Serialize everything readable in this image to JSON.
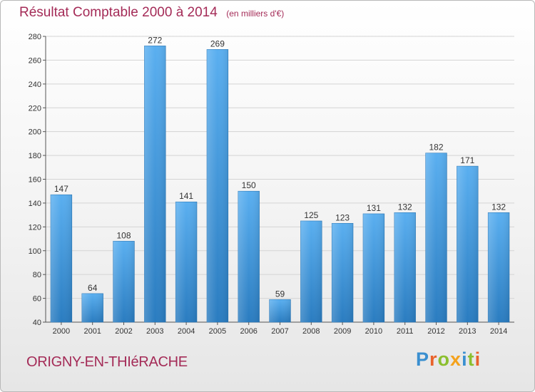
{
  "header": {
    "title": "Résultat Comptable 2000 à 2014",
    "subtitle": "(en milliers d'€)"
  },
  "footer": {
    "town": "ORIGNY-EN-THIéRACHE",
    "logo_letters": [
      {
        "char": "P",
        "color": "#3a8fd0"
      },
      {
        "char": "r",
        "color": "#e9622b"
      },
      {
        "char": "o",
        "color": "#8bbf2f"
      },
      {
        "char": "x",
        "color": "#f4a21c"
      },
      {
        "char": "i",
        "color": "#3a8fd0"
      },
      {
        "char": "t",
        "color": "#8bbf2f"
      },
      {
        "char": "i",
        "color": "#e9622b"
      }
    ]
  },
  "colors": {
    "accent": "#a42b57",
    "bar_top": "#5aaff0",
    "bar_bottom": "#2a7cc0"
  },
  "chart_data": {
    "type": "bar",
    "title": "Résultat Comptable 2000 à 2014",
    "subtitle": "(en milliers d'€)",
    "xlabel": "",
    "ylabel": "",
    "categories": [
      "2000",
      "2001",
      "2002",
      "2003",
      "2004",
      "2005",
      "2006",
      "2007",
      "2008",
      "2009",
      "2010",
      "2011",
      "2012",
      "2013",
      "2014"
    ],
    "values": [
      147,
      64,
      108,
      272,
      141,
      269,
      150,
      59,
      125,
      123,
      131,
      132,
      182,
      171,
      132
    ],
    "ylim": [
      40,
      280
    ],
    "yticks": [
      40,
      60,
      80,
      100,
      120,
      140,
      160,
      180,
      200,
      220,
      240,
      260,
      280
    ],
    "grid": true,
    "data_labels": true
  }
}
